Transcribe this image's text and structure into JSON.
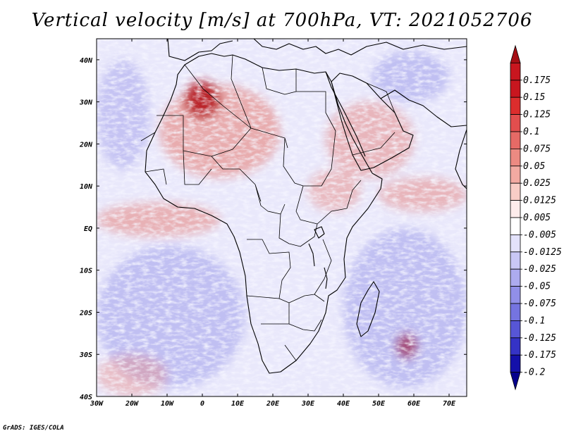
{
  "title": "Vertical velocity [m/s] at 700hPa, VT: 2021052706",
  "credit": "GrADS: IGES/COLA",
  "map": {
    "lon_range": [
      -30,
      75
    ],
    "lat_range": [
      -40,
      45
    ],
    "lon_ticks": [
      {
        "lon": -30,
        "label": "30W"
      },
      {
        "lon": -20,
        "label": "20W"
      },
      {
        "lon": -10,
        "label": "10W"
      },
      {
        "lon": 0,
        "label": "0"
      },
      {
        "lon": 10,
        "label": "10E"
      },
      {
        "lon": 20,
        "label": "20E"
      },
      {
        "lon": 30,
        "label": "30E"
      },
      {
        "lon": 40,
        "label": "40E"
      },
      {
        "lon": 50,
        "label": "50E"
      },
      {
        "lon": 60,
        "label": "60E"
      },
      {
        "lon": 70,
        "label": "70E"
      }
    ],
    "lat_ticks": [
      {
        "lat": 40,
        "label": "40N"
      },
      {
        "lat": 30,
        "label": "30N"
      },
      {
        "lat": 20,
        "label": "20N"
      },
      {
        "lat": 10,
        "label": "10N"
      },
      {
        "lat": 0,
        "label": "EQ"
      },
      {
        "lat": -10,
        "label": "10S"
      },
      {
        "lat": -20,
        "label": "20S"
      },
      {
        "lat": -30,
        "label": "30S"
      },
      {
        "lat": -40,
        "label": "40S"
      }
    ],
    "field_regions": [
      {
        "name": "itcz-atlantic-ascent",
        "lon": [
          -30,
          5
        ],
        "lat": [
          -2,
          6
        ],
        "sign": 1,
        "strength": 0.55
      },
      {
        "name": "itcz-indian-ascent",
        "lon": [
          50,
          75
        ],
        "lat": [
          4,
          12
        ],
        "sign": 1,
        "strength": 0.5
      },
      {
        "name": "sahara-ascent",
        "lon": [
          -12,
          22
        ],
        "lat": [
          12,
          34
        ],
        "sign": 1,
        "strength": 0.6
      },
      {
        "name": "atlas-strong-ascent",
        "lon": [
          -5,
          5
        ],
        "lat": [
          26,
          35
        ],
        "sign": 1,
        "strength": 0.9
      },
      {
        "name": "arabia-ascent",
        "lon": [
          35,
          60
        ],
        "lat": [
          12,
          30
        ],
        "sign": 1,
        "strength": 0.5
      },
      {
        "name": "ethiopia-ascent",
        "lon": [
          30,
          45
        ],
        "lat": [
          4,
          14
        ],
        "sign": 1,
        "strength": 0.45
      },
      {
        "name": "mascarene-strong-ascent",
        "lon": [
          55,
          61
        ],
        "lat": [
          -31,
          -25
        ],
        "sign": 1,
        "strength": 1.0
      },
      {
        "name": "south-atlantic-subsidence",
        "lon": [
          -30,
          12
        ],
        "lat": [
          -38,
          -4
        ],
        "sign": -1,
        "strength": 0.45
      },
      {
        "name": "south-indian-subsidence",
        "lon": [
          40,
          75
        ],
        "lat": [
          -38,
          0
        ],
        "sign": -1,
        "strength": 0.45
      },
      {
        "name": "north-atlantic-subsidence",
        "lon": [
          -30,
          -15
        ],
        "lat": [
          14,
          40
        ],
        "sign": -1,
        "strength": 0.4
      },
      {
        "name": "iran-subsidence",
        "lon": [
          48,
          70
        ],
        "lat": [
          30,
          42
        ],
        "sign": -1,
        "strength": 0.45
      },
      {
        "name": "southwest-ascent",
        "lon": [
          -30,
          -10
        ],
        "lat": [
          -40,
          -30
        ],
        "sign": 1,
        "strength": 0.4
      }
    ]
  },
  "colorbar": {
    "levels": [
      "0.175",
      "0.15",
      "0.125",
      "0.1",
      "0.075",
      "0.05",
      "0.025",
      "0.0125",
      "0.005",
      "-0.005",
      "-0.0125",
      "-0.025",
      "-0.05",
      "-0.075",
      "-0.1",
      "-0.125",
      "-0.175",
      "-0.2"
    ],
    "colors": [
      "#a50f15",
      "#c8161f",
      "#dc2d2d",
      "#e24e4e",
      "#e66a66",
      "#ec8a82",
      "#f2aaa2",
      "#f8cdc6",
      "#fdeceb",
      "#ffffff",
      "#e3e2fb",
      "#c9c7f6",
      "#adabef",
      "#918fe8",
      "#7574e0",
      "#5756d6",
      "#3533c6",
      "#1410aa",
      "#05008c"
    ]
  }
}
